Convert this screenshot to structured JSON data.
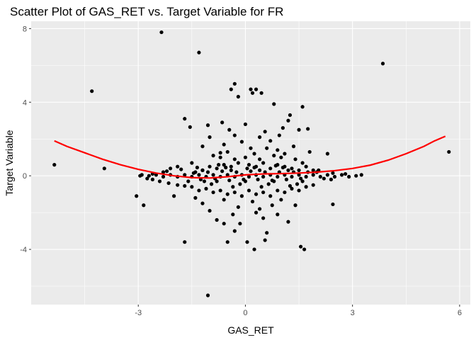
{
  "chart_data": {
    "type": "scatter",
    "title": "Scatter Plot of GAS_RET vs. Target Variable for FR",
    "xlabel": "GAS_RET",
    "ylabel": "Target Variable",
    "xlim": [
      -6.0,
      6.3
    ],
    "ylim": [
      -7.0,
      8.4
    ],
    "x_ticks": [
      -3,
      0,
      3,
      6
    ],
    "x_tick_labels": [
      "-3",
      "0",
      "3",
      "6"
    ],
    "y_ticks": [
      -4,
      0,
      4,
      8
    ],
    "y_tick_labels": [
      "-4",
      "0",
      "4",
      "8"
    ],
    "grid": true,
    "legend": "none",
    "colors": {
      "panel": "#ebebeb",
      "grid": "#ffffff",
      "points": "#000000",
      "smooth": "#ff0000",
      "tick": "#4d4d4d"
    },
    "points": [
      [
        -2.35,
        7.8
      ],
      [
        -1.3,
        6.7
      ],
      [
        3.85,
        6.1
      ],
      [
        -4.3,
        4.6
      ],
      [
        -0.3,
        5.0
      ],
      [
        -0.4,
        4.7
      ],
      [
        0.15,
        4.7
      ],
      [
        0.3,
        4.7
      ],
      [
        0.2,
        4.5
      ],
      [
        0.45,
        4.5
      ],
      [
        -0.2,
        4.3
      ],
      [
        0.8,
        3.9
      ],
      [
        1.6,
        3.75
      ],
      [
        -1.7,
        3.1
      ],
      [
        1.25,
        3.3
      ],
      [
        -0.65,
        2.9
      ],
      [
        -1.05,
        2.75
      ],
      [
        -1.55,
        2.65
      ],
      [
        0.0,
        2.8
      ],
      [
        1.05,
        2.6
      ],
      [
        1.5,
        2.5
      ],
      [
        1.75,
        2.55
      ],
      [
        1.2,
        3.0
      ],
      [
        -0.3,
        2.2
      ],
      [
        0.4,
        2.1
      ],
      [
        0.7,
        1.9
      ],
      [
        1.8,
        1.3
      ],
      [
        2.3,
        1.2
      ],
      [
        5.7,
        1.3
      ],
      [
        -0.6,
        1.7
      ],
      [
        0.9,
        1.4
      ],
      [
        -1.2,
        1.6
      ],
      [
        -1.0,
        2.1
      ],
      [
        0.25,
        1.2
      ],
      [
        1.1,
        1.2
      ],
      [
        -1.9,
        0.5
      ],
      [
        -2.1,
        0.4
      ],
      [
        -5.35,
        0.6
      ],
      [
        -3.95,
        0.4
      ],
      [
        -1.5,
        0.7
      ],
      [
        -1.8,
        0.35
      ],
      [
        -2.3,
        0.2
      ],
      [
        -2.6,
        0.1
      ],
      [
        -2.95,
        0.0
      ],
      [
        -2.75,
        -0.15
      ],
      [
        -2.4,
        -0.3
      ],
      [
        -2.15,
        -0.4
      ],
      [
        -1.9,
        -0.5
      ],
      [
        -1.7,
        -0.55
      ],
      [
        2.45,
        0.15
      ],
      [
        2.7,
        0.05
      ],
      [
        2.9,
        -0.05
      ],
      [
        3.1,
        0.0
      ],
      [
        3.25,
        0.05
      ],
      [
        2.05,
        0.3
      ],
      [
        2.2,
        -0.15
      ],
      [
        -1.4,
        0.2
      ],
      [
        -1.2,
        0.3
      ],
      [
        -1.0,
        0.5
      ],
      [
        -0.8,
        0.4
      ],
      [
        -0.6,
        0.6
      ],
      [
        -0.4,
        0.5
      ],
      [
        -0.2,
        0.7
      ],
      [
        0.1,
        0.6
      ],
      [
        0.3,
        0.5
      ],
      [
        0.5,
        0.7
      ],
      [
        0.7,
        0.4
      ],
      [
        0.9,
        0.6
      ],
      [
        1.1,
        0.5
      ],
      [
        1.3,
        0.4
      ],
      [
        1.5,
        0.3
      ],
      [
        1.7,
        0.5
      ],
      [
        1.9,
        0.3
      ],
      [
        -1.5,
        -0.6
      ],
      [
        -1.3,
        -0.8
      ],
      [
        -1.1,
        -0.7
      ],
      [
        -0.9,
        -0.9
      ],
      [
        -0.7,
        -0.8
      ],
      [
        -0.5,
        -1.0
      ],
      [
        -0.3,
        -0.9
      ],
      [
        -0.1,
        -1.1
      ],
      [
        0.1,
        -0.8
      ],
      [
        0.3,
        -1.0
      ],
      [
        0.5,
        -0.9
      ],
      [
        0.7,
        -1.1
      ],
      [
        0.9,
        -0.8
      ],
      [
        1.1,
        -0.9
      ],
      [
        1.3,
        -0.7
      ],
      [
        1.5,
        -0.8
      ],
      [
        1.7,
        -0.6
      ],
      [
        1.9,
        -0.5
      ],
      [
        -3.05,
        -1.1
      ],
      [
        -2.85,
        -1.6
      ],
      [
        -2.0,
        -1.1
      ],
      [
        -1.2,
        -1.5
      ],
      [
        -1.0,
        -1.9
      ],
      [
        -0.8,
        -2.4
      ],
      [
        -0.6,
        -2.6
      ],
      [
        -0.35,
        -2.1
      ],
      [
        -0.15,
        -2.6
      ],
      [
        0.3,
        -2.0
      ],
      [
        0.5,
        -2.3
      ],
      [
        0.6,
        -3.1
      ],
      [
        0.9,
        -2.1
      ],
      [
        1.2,
        -2.5
      ],
      [
        1.4,
        -1.6
      ],
      [
        -1.7,
        -3.6
      ],
      [
        -0.5,
        -3.6
      ],
      [
        -0.3,
        -3.0
      ],
      [
        0.05,
        -3.6
      ],
      [
        0.25,
        -4.0
      ],
      [
        0.55,
        -3.5
      ],
      [
        1.55,
        -3.85
      ],
      [
        1.65,
        -4.0
      ],
      [
        2.45,
        -1.55
      ],
      [
        -1.05,
        -6.5
      ],
      [
        -0.9,
        1.1
      ],
      [
        -0.5,
        1.3
      ],
      [
        0.6,
        1.5
      ],
      [
        1.0,
        1.0
      ],
      [
        1.4,
        0.9
      ],
      [
        -0.7,
        1.0
      ],
      [
        -0.3,
        0.9
      ],
      [
        0.0,
        1.0
      ],
      [
        0.4,
        0.9
      ],
      [
        0.8,
        1.1
      ],
      [
        1.6,
        0.7
      ],
      [
        -2.9,
        0.05
      ],
      [
        -2.7,
        0.0
      ],
      [
        -2.5,
        0.05
      ],
      [
        -2.3,
        -0.05
      ],
      [
        -2.1,
        0.05
      ],
      [
        -1.9,
        -0.05
      ],
      [
        -1.7,
        0.05
      ],
      [
        -1.5,
        -0.05
      ],
      [
        -1.3,
        0.05
      ],
      [
        -1.1,
        -0.05
      ],
      [
        -0.9,
        0.05
      ],
      [
        -0.7,
        -0.05
      ],
      [
        -0.5,
        0.05
      ],
      [
        -0.3,
        -0.05
      ],
      [
        -0.1,
        0.05
      ],
      [
        0.1,
        -0.05
      ],
      [
        0.3,
        0.05
      ],
      [
        0.5,
        -0.05
      ],
      [
        0.7,
        0.05
      ],
      [
        0.9,
        -0.05
      ],
      [
        1.1,
        0.05
      ],
      [
        1.3,
        -0.05
      ],
      [
        1.5,
        0.05
      ],
      [
        1.7,
        -0.05
      ],
      [
        1.9,
        0.05
      ],
      [
        2.1,
        -0.05
      ],
      [
        2.3,
        0.05
      ],
      [
        2.5,
        -0.05
      ],
      [
        -2.6,
        -0.2
      ],
      [
        -2.2,
        0.25
      ],
      [
        -1.6,
        -0.3
      ],
      [
        -1.2,
        0.3
      ],
      [
        -0.8,
        -0.3
      ],
      [
        -0.4,
        0.3
      ],
      [
        0.0,
        -0.3
      ],
      [
        0.4,
        0.3
      ],
      [
        0.8,
        -0.3
      ],
      [
        1.2,
        0.3
      ],
      [
        1.6,
        -0.3
      ],
      [
        2.0,
        0.2
      ],
      [
        2.4,
        -0.2
      ],
      [
        2.8,
        0.1
      ],
      [
        -1.45,
        0.15
      ],
      [
        -1.25,
        -0.2
      ],
      [
        -1.05,
        0.2
      ],
      [
        -0.85,
        -0.15
      ],
      [
        -0.65,
        0.25
      ],
      [
        -0.45,
        -0.25
      ],
      [
        -0.25,
        0.2
      ],
      [
        -0.05,
        -0.2
      ],
      [
        0.15,
        0.25
      ],
      [
        0.35,
        -0.2
      ],
      [
        0.55,
        0.2
      ],
      [
        0.75,
        -0.25
      ],
      [
        0.95,
        0.2
      ],
      [
        1.15,
        -0.2
      ],
      [
        1.35,
        0.2
      ],
      [
        1.55,
        -0.15
      ],
      [
        1.75,
        0.2
      ],
      [
        -0.95,
        -0.45
      ],
      [
        -0.55,
        0.45
      ],
      [
        -0.15,
        -0.45
      ],
      [
        0.25,
        0.45
      ],
      [
        0.65,
        -0.45
      ],
      [
        1.05,
        0.45
      ],
      [
        1.45,
        -0.45
      ],
      [
        -1.35,
        0.45
      ],
      [
        -0.75,
        0.6
      ],
      [
        0.45,
        -0.6
      ],
      [
        1.25,
        -0.55
      ],
      [
        -0.35,
        -0.6
      ],
      [
        0.85,
        0.55
      ],
      [
        -1.15,
        -0.3
      ],
      [
        0.05,
        0.4
      ],
      [
        -0.6,
        -1.3
      ],
      [
        0.2,
        -1.4
      ],
      [
        1.0,
        -1.3
      ],
      [
        -1.4,
        -1.2
      ],
      [
        0.75,
        -1.6
      ],
      [
        -0.2,
        -1.7
      ],
      [
        0.4,
        -1.8
      ],
      [
        -0.7,
        1.25
      ],
      [
        0.15,
        1.5
      ],
      [
        1.35,
        1.6
      ],
      [
        -0.1,
        1.85
      ],
      [
        0.55,
        2.4
      ],
      [
        -0.45,
        2.5
      ],
      [
        0.95,
        2.2
      ]
    ],
    "smooth": {
      "name": "",
      "x": [
        -5.35,
        -5.0,
        -4.5,
        -4.0,
        -3.5,
        -3.0,
        -2.5,
        -2.0,
        -1.5,
        -1.0,
        -0.5,
        0.0,
        0.5,
        1.0,
        1.5,
        2.0,
        2.5,
        3.0,
        3.5,
        4.0,
        4.5,
        5.0,
        5.3,
        5.6
      ],
      "y": [
        1.9,
        1.6,
        1.25,
        0.9,
        0.6,
        0.35,
        0.15,
        0.0,
        -0.1,
        -0.12,
        -0.05,
        0.05,
        0.1,
        0.12,
        0.15,
        0.2,
        0.28,
        0.4,
        0.58,
        0.85,
        1.2,
        1.6,
        1.9,
        2.15
      ]
    }
  }
}
